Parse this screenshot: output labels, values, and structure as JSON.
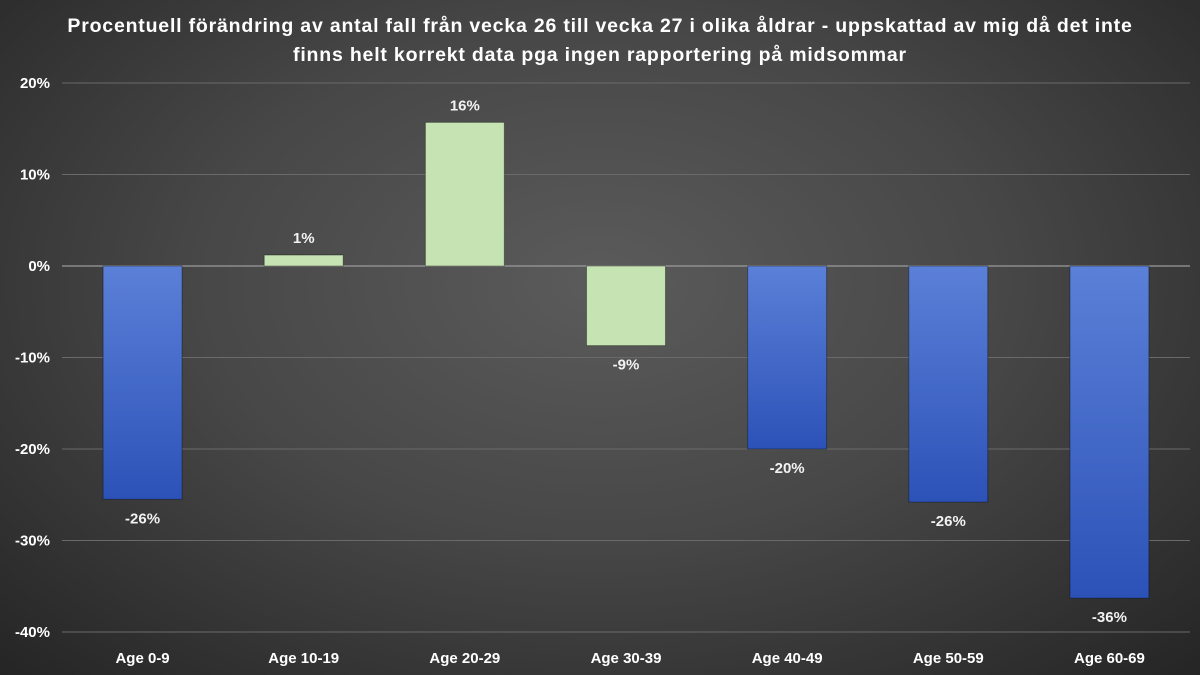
{
  "chart_data": {
    "type": "bar",
    "title": "Procentuell förändring av antal fall från vecka 26 till vecka 27 i olika åldrar - uppskattad av mig då det inte finns helt korrekt data pga ingen rapportering på midsommar",
    "categories": [
      "Age 0-9",
      "Age 10-19",
      "Age 20-29",
      "Age 30-39",
      "Age 40-49",
      "Age 50-59",
      "Age 60-69"
    ],
    "values": [
      -25.5,
      1.2,
      15.7,
      -8.7,
      -20.0,
      -25.8,
      -36.3
    ],
    "data_labels": [
      "-26%",
      "1%",
      "16%",
      "-9%",
      "-20%",
      "-26%",
      "-36%"
    ],
    "bar_colors": [
      "#3a63c8",
      "#c6e3b3",
      "#c6e3b3",
      "#c6e3b3",
      "#3a63c8",
      "#3a63c8",
      "#3a63c8"
    ],
    "yticks": [
      20,
      10,
      0,
      -10,
      -20,
      -30,
      -40
    ],
    "ytick_labels": [
      "20%",
      "10%",
      "0%",
      "-10%",
      "-20%",
      "-30%",
      "-40%"
    ],
    "ylim": [
      -40,
      20
    ],
    "xlabel": "",
    "ylabel": "",
    "grid": true,
    "legend": null
  }
}
